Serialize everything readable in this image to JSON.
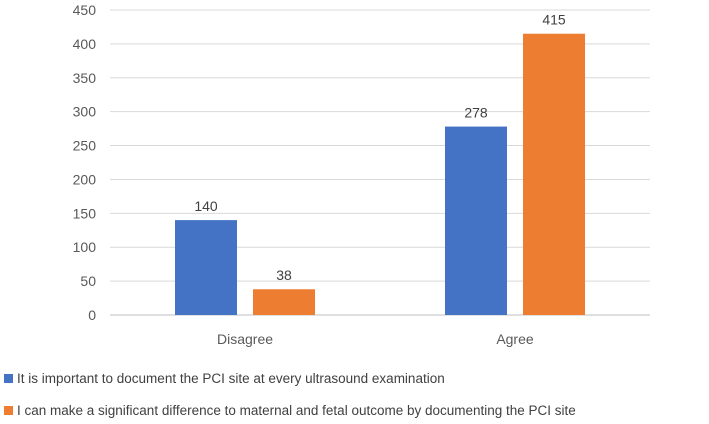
{
  "chart_data": {
    "type": "bar",
    "categories": [
      "Disagree",
      "Agree"
    ],
    "series": [
      {
        "name": "It is important to document the PCI site at every ultrasound examination",
        "values": [
          140,
          278
        ],
        "color": "#4472C4"
      },
      {
        "name": "I can make a significant difference to maternal and fetal outcome by documenting the PCI site",
        "values": [
          38,
          415
        ],
        "color": "#ED7D31"
      }
    ],
    "data_labels": true,
    "ylim": [
      0,
      450
    ],
    "y_ticks": [
      0,
      50,
      100,
      150,
      200,
      250,
      300,
      350,
      400,
      450
    ],
    "grid": true,
    "legend_position": "bottom-left",
    "title": "",
    "xlabel": "",
    "ylabel": ""
  }
}
